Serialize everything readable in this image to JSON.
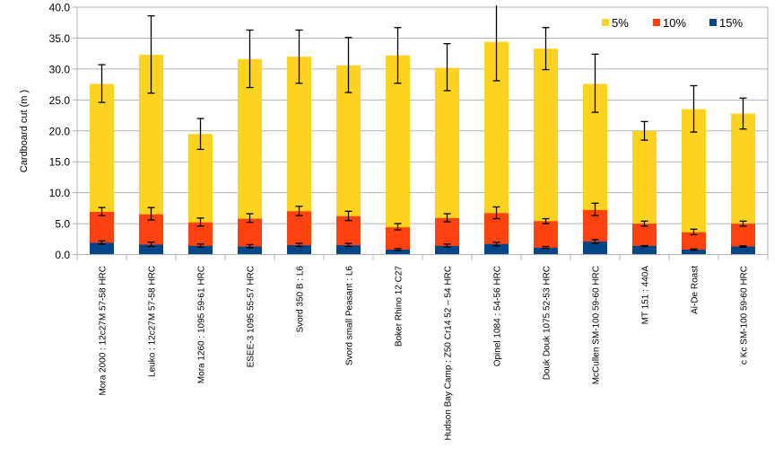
{
  "chart_data": {
    "type": "bar",
    "mode": "overlapping-with-error-bars",
    "title": "",
    "xlabel": "",
    "ylabel": "Cardboard cut (m )",
    "ylim": [
      0,
      40
    ],
    "yticks": [
      "0.0",
      "5.0",
      "10.0",
      "15.0",
      "20.0",
      "25.0",
      "30.0",
      "35.0",
      "40.0"
    ],
    "grid": true,
    "legend_position": "top-right",
    "categories": [
      "Mora 2000 : 12c27M 57-58  HRC",
      "Leuko : 12c27M 57-58  HRC",
      "Mora 1260 : 1095 59-61  HRC",
      "ESEE-3 1095 55-57 HRC",
      "Svord 350 B : L6",
      "Svord small Peasant : L6",
      "Boker Rhino 12 C27",
      "Hudson  Bay Camp : Z50 Cr14 52 – 54  HRC",
      "Opinel 1084 : 54-56 HRC",
      "Douk Douk 1075 52-53 HRC",
      "McCullen SM-100  59-60  HRC",
      "MT 151  : 440A",
      "Ai-De Roast",
      "c Kc  SM-100 59-60 HRC"
    ],
    "series": [
      {
        "name": "5%",
        "color": "#FFD320",
        "values": [
          27.6,
          32.3,
          19.5,
          31.6,
          32.0,
          30.6,
          32.2,
          30.2,
          34.4,
          33.3,
          27.6,
          20.0,
          23.5,
          22.8
        ],
        "err_low": [
          24.6,
          26.1,
          17.0,
          27.0,
          27.7,
          26.2,
          27.7,
          26.5,
          28.1,
          29.9,
          23.0,
          18.5,
          19.8,
          20.3
        ],
        "err_high": [
          30.7,
          38.6,
          22.0,
          36.3,
          36.3,
          35.1,
          36.7,
          34.1,
          40.7,
          36.7,
          32.4,
          21.5,
          27.3,
          25.3
        ]
      },
      {
        "name": "10%",
        "color": "#FF420E",
        "values": [
          6.9,
          6.5,
          5.2,
          5.8,
          7.0,
          6.2,
          4.4,
          5.9,
          6.7,
          5.4,
          7.2,
          5.0,
          3.6,
          5.0
        ],
        "err_low": [
          6.3,
          5.6,
          4.6,
          5.2,
          6.3,
          5.5,
          4.0,
          5.3,
          5.8,
          5.0,
          6.3,
          4.6,
          3.2,
          4.6
        ],
        "err_high": [
          7.6,
          7.6,
          5.9,
          6.6,
          7.8,
          7.0,
          5.0,
          6.6,
          7.7,
          5.8,
          8.3,
          5.4,
          4.1,
          5.4
        ]
      },
      {
        "name": "15%",
        "color": "#004586",
        "values": [
          1.9,
          1.6,
          1.4,
          1.3,
          1.5,
          1.5,
          0.8,
          1.4,
          1.7,
          1.1,
          2.1,
          1.4,
          0.8,
          1.3
        ],
        "err_low": [
          1.7,
          1.3,
          1.2,
          1.1,
          1.3,
          1.3,
          0.7,
          1.2,
          1.4,
          1.0,
          1.8,
          1.3,
          0.7,
          1.2
        ],
        "err_high": [
          2.2,
          2.0,
          1.7,
          1.6,
          1.8,
          1.8,
          1.0,
          1.7,
          2.0,
          1.3,
          2.4,
          1.45,
          0.9,
          1.4
        ]
      }
    ]
  }
}
